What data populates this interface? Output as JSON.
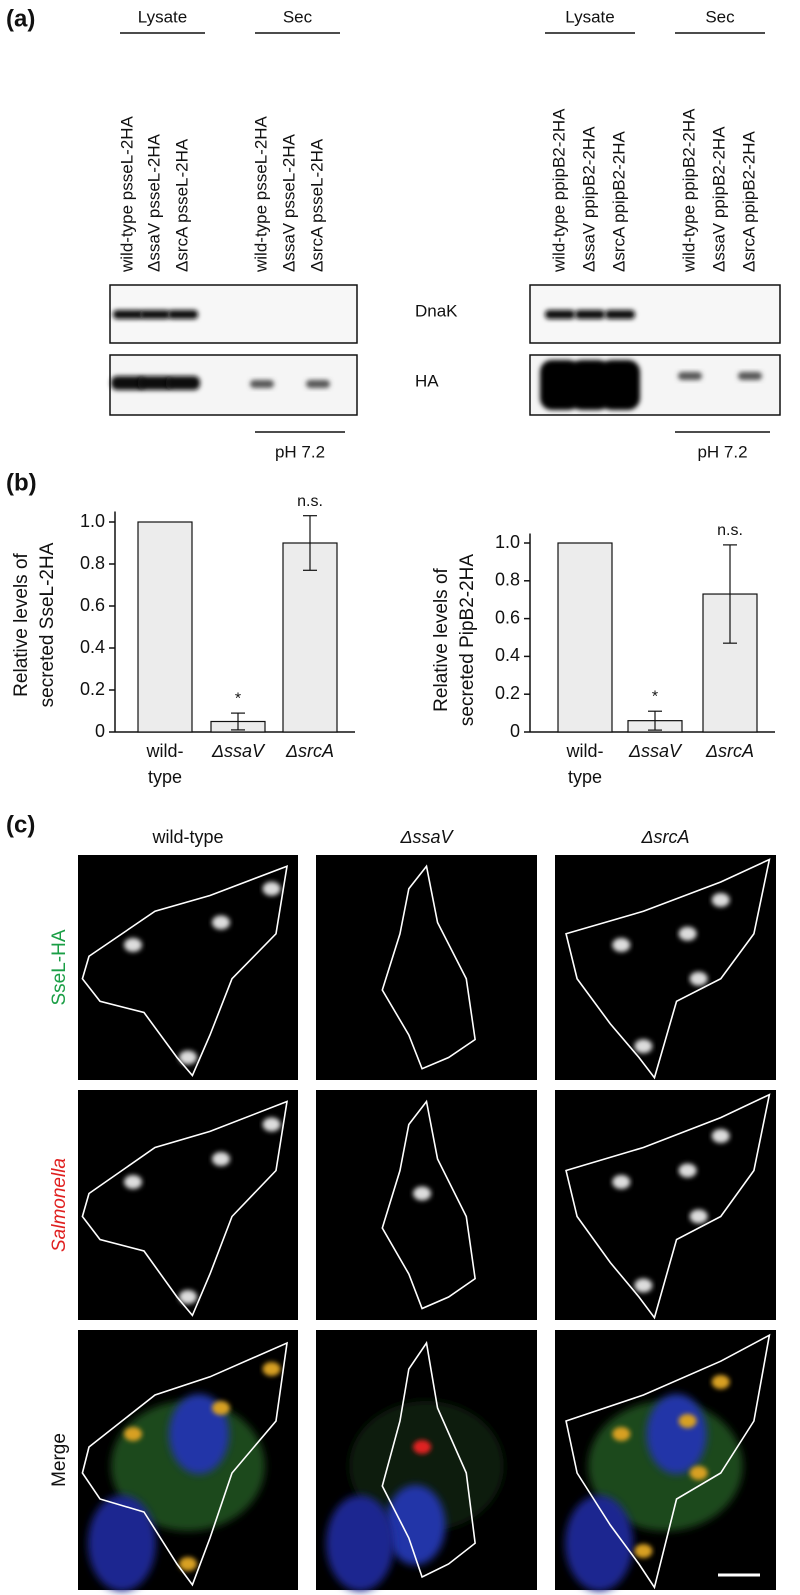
{
  "panel_a": {
    "label": "(a)",
    "rows": [
      "DnaK",
      "HA"
    ],
    "blots": [
      {
        "groups": [
          "Lysate",
          "Sec"
        ],
        "condition": "pH 7.2",
        "lanes": [
          "wild-type psseL-2HA",
          "ΔssaV psseL-2HA",
          "ΔsrcA psseL-2HA",
          "wild-type psseL-2HA",
          "ΔssaV psseL-2HA",
          "ΔsrcA psseL-2HA"
        ]
      },
      {
        "groups": [
          "Lysate",
          "Sec"
        ],
        "condition": "pH 7.2",
        "lanes": [
          "wild-type ppipB2-2HA",
          "ΔssaV ppipB2-2HA",
          "ΔsrcA ppipB2-2HA",
          "wild-type ppipB2-2HA",
          "ΔssaV ppipB2-2HA",
          "ΔsrcA ppipB2-2HA"
        ]
      }
    ]
  },
  "panel_b": {
    "label": "(b)"
  },
  "chart_data": [
    {
      "type": "bar",
      "ylabel": [
        "Relative levels of",
        "secreted SseL-2HA"
      ],
      "categories": [
        "wild-type",
        "ΔssaV",
        "ΔsrcA"
      ],
      "values": [
        1,
        0.05,
        0.9
      ],
      "errors": [
        null,
        0.04,
        0.13
      ],
      "annotations": [
        null,
        "*",
        "n.s."
      ],
      "color": "#ececec",
      "ylim": [
        0,
        1.05
      ],
      "yticks": [
        0,
        0.2,
        0.4,
        0.6,
        0.8,
        {
          "value": 1,
          "label": "1.0"
        }
      ]
    },
    {
      "type": "bar",
      "ylabel": [
        "Relative levels of",
        "secreted PipB2-2HA"
      ],
      "categories": [
        "wild-type",
        "ΔssaV",
        "ΔsrcA"
      ],
      "values": [
        1,
        0.06,
        0.73
      ],
      "errors": [
        null,
        0.05,
        0.26
      ],
      "annotations": [
        null,
        "*",
        "n.s."
      ],
      "color": "#ececec",
      "ylim": [
        0,
        1.05
      ],
      "yticks": [
        0,
        0.2,
        0.4,
        0.6,
        0.8,
        {
          "value": 1,
          "label": "1.0"
        }
      ]
    }
  ],
  "panel_c": {
    "label": "(c)",
    "columns": [
      "wild-type",
      "ΔssaV",
      "ΔsrcA"
    ],
    "rows": [
      {
        "text": "SseL-HA",
        "color": "#1a9e45"
      },
      {
        "text": "Salmonella",
        "color": "#e02020"
      },
      {
        "text": "Merge",
        "color": "#111111"
      }
    ]
  }
}
